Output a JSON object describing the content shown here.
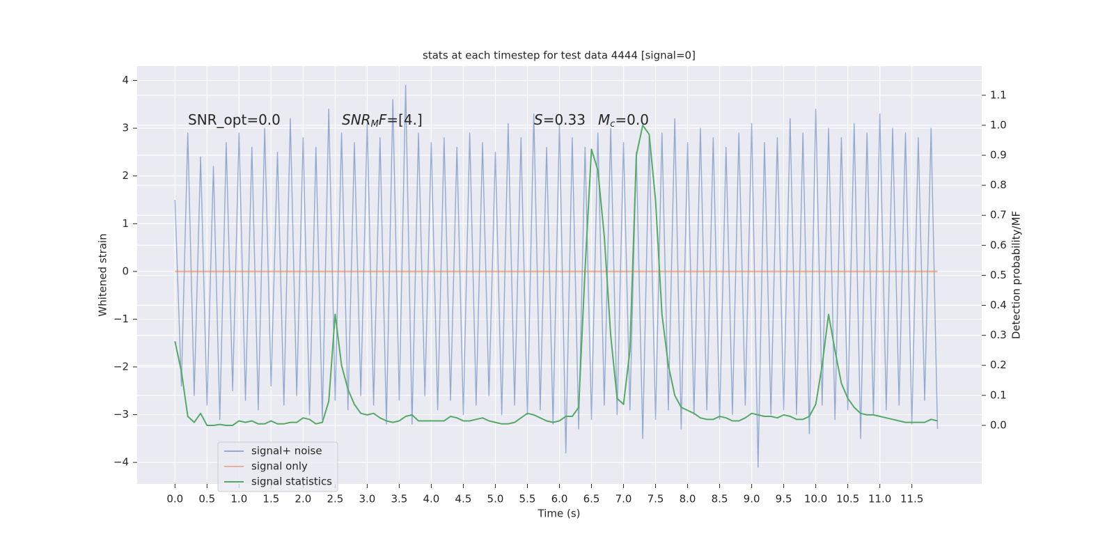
{
  "chart_data": {
    "type": "line",
    "title": "stats at each timestep for test data 4444 [signal=0]",
    "x_label": "Time (s)",
    "y_label": "Whitened strain",
    "y2_label": "Detection probability/MF",
    "annotations": [
      [
        "SNR_opt=0.0"
      ],
      [
        "SNR",
        "M",
        "F",
        "=[4.]"
      ],
      [
        "S",
        "=0.33"
      ],
      [
        "M",
        "c",
        "=0.0"
      ]
    ],
    "x": [
      0.0,
      0.1,
      0.2,
      0.3,
      0.4,
      0.5,
      0.6,
      0.7,
      0.8,
      0.9,
      1.0,
      1.1,
      1.2,
      1.3,
      1.4,
      1.5,
      1.6,
      1.7,
      1.8,
      1.9,
      2.0,
      2.1,
      2.2,
      2.3,
      2.4,
      2.5,
      2.6,
      2.7,
      2.8,
      2.9,
      3.0,
      3.1,
      3.2,
      3.3,
      3.4,
      3.5,
      3.6,
      3.7,
      3.8,
      3.9,
      4.0,
      4.1,
      4.2,
      4.3,
      4.4,
      4.5,
      4.6,
      4.7,
      4.8,
      4.9,
      5.0,
      5.1,
      5.2,
      5.3,
      5.4,
      5.5,
      5.6,
      5.7,
      5.8,
      5.9,
      6.0,
      6.1,
      6.2,
      6.3,
      6.4,
      6.5,
      6.6,
      6.7,
      6.8,
      6.9,
      7.0,
      7.1,
      7.2,
      7.3,
      7.4,
      7.5,
      7.6,
      7.7,
      7.8,
      7.9,
      8.0,
      8.1,
      8.2,
      8.3,
      8.4,
      8.5,
      8.6,
      8.7,
      8.8,
      8.9,
      9.0,
      9.1,
      9.2,
      9.3,
      9.4,
      9.5,
      9.6,
      9.7,
      9.8,
      9.9,
      10.0,
      10.1,
      10.2,
      10.3,
      10.4,
      10.5,
      10.6,
      10.7,
      10.8,
      10.9,
      11.0,
      11.1,
      11.2,
      11.3,
      11.4,
      11.5,
      11.6,
      11.7,
      11.8,
      11.9
    ],
    "series": [
      {
        "name": "signal+ noise",
        "color": "#4c72b0",
        "axis": "y",
        "values": [
          1.5,
          -2.4,
          2.9,
          -2.6,
          2.4,
          -2.8,
          2.2,
          -3.1,
          2.7,
          -2.5,
          2.9,
          -2.7,
          2.6,
          -2.9,
          3.0,
          -2.4,
          2.5,
          -2.8,
          3.2,
          -2.6,
          2.8,
          -3.0,
          2.6,
          -3.1,
          3.4,
          -2.7,
          2.9,
          -2.9,
          2.7,
          -2.6,
          3.1,
          -2.8,
          2.8,
          -3.2,
          3.6,
          -2.7,
          3.9,
          -3.2,
          2.9,
          -2.6,
          2.7,
          -2.9,
          2.8,
          -2.7,
          2.6,
          -3.0,
          2.9,
          -2.8,
          2.7,
          -2.6,
          2.5,
          -3.0,
          3.1,
          -2.8,
          2.8,
          -3.0,
          3.3,
          -2.9,
          2.6,
          -3.2,
          3.1,
          -3.8,
          2.8,
          -3.3,
          2.6,
          -3.1,
          2.9,
          -2.8,
          3.0,
          -3.0,
          2.7,
          -2.9,
          2.5,
          -3.5,
          2.8,
          -3.1,
          2.9,
          -2.9,
          3.2,
          -3.3,
          2.7,
          -3.0,
          3.0,
          -2.9,
          2.8,
          -3.1,
          2.6,
          -3.0,
          2.9,
          -2.8,
          3.1,
          -4.1,
          2.7,
          -3.0,
          2.8,
          -2.9,
          3.2,
          -3.0,
          2.9,
          -3.4,
          3.4,
          -2.8,
          3.0,
          -3.1,
          2.8,
          -2.9,
          3.1,
          -3.5,
          2.9,
          -3.0,
          3.3,
          -2.9,
          3.0,
          -2.8,
          2.9,
          -3.2,
          2.8,
          -2.7,
          3.0,
          -3.3
        ]
      },
      {
        "name": "signal only",
        "color": "#dd8452",
        "axis": "y",
        "values": [
          0,
          0,
          0,
          0,
          0,
          0,
          0,
          0,
          0,
          0,
          0,
          0,
          0,
          0,
          0,
          0,
          0,
          0,
          0,
          0,
          0,
          0,
          0,
          0,
          0,
          0,
          0,
          0,
          0,
          0,
          0,
          0,
          0,
          0,
          0,
          0,
          0,
          0,
          0,
          0,
          0,
          0,
          0,
          0,
          0,
          0,
          0,
          0,
          0,
          0,
          0,
          0,
          0,
          0,
          0,
          0,
          0,
          0,
          0,
          0,
          0,
          0,
          0,
          0,
          0,
          0,
          0,
          0,
          0,
          0,
          0,
          0,
          0,
          0,
          0,
          0,
          0,
          0,
          0,
          0,
          0,
          0,
          0,
          0,
          0,
          0,
          0,
          0,
          0,
          0,
          0,
          0,
          0,
          0,
          0,
          0,
          0,
          0,
          0,
          0,
          0,
          0,
          0,
          0,
          0,
          0,
          0,
          0,
          0,
          0,
          0,
          0,
          0,
          0,
          0,
          0,
          0,
          0,
          0,
          0
        ]
      },
      {
        "name": "signal statistics",
        "color": "#55a868",
        "axis": "y2",
        "values": [
          0.28,
          0.18,
          0.03,
          0.01,
          0.04,
          0.0,
          0.0,
          0.003,
          0.0,
          0.0,
          0.015,
          0.01,
          0.015,
          0.005,
          0.005,
          0.015,
          0.005,
          0.005,
          0.01,
          0.01,
          0.025,
          0.02,
          0.005,
          0.01,
          0.08,
          0.37,
          0.2,
          0.12,
          0.07,
          0.04,
          0.035,
          0.04,
          0.025,
          0.015,
          0.01,
          0.015,
          0.03,
          0.035,
          0.015,
          0.015,
          0.015,
          0.015,
          0.015,
          0.03,
          0.025,
          0.015,
          0.015,
          0.02,
          0.025,
          0.015,
          0.01,
          0.005,
          0.005,
          0.01,
          0.025,
          0.04,
          0.035,
          0.025,
          0.015,
          0.01,
          0.015,
          0.03,
          0.03,
          0.06,
          0.52,
          0.92,
          0.85,
          0.63,
          0.3,
          0.09,
          0.07,
          0.25,
          0.9,
          1.0,
          0.97,
          0.75,
          0.37,
          0.2,
          0.1,
          0.06,
          0.05,
          0.04,
          0.025,
          0.02,
          0.02,
          0.03,
          0.025,
          0.015,
          0.015,
          0.025,
          0.04,
          0.035,
          0.03,
          0.03,
          0.025,
          0.035,
          0.03,
          0.02,
          0.02,
          0.03,
          0.07,
          0.2,
          0.37,
          0.25,
          0.14,
          0.09,
          0.06,
          0.04,
          0.035,
          0.035,
          0.03,
          0.025,
          0.02,
          0.015,
          0.01,
          0.01,
          0.01,
          0.01,
          0.02,
          0.015
        ]
      }
    ],
    "xlim": [
      -0.59,
      12.59
    ],
    "xticks": [
      {
        "value": 0,
        "label": "0.0"
      },
      0.5,
      {
        "value": 1,
        "label": "1.0"
      },
      1.5,
      {
        "value": 2,
        "label": "2.0"
      },
      2.5,
      {
        "value": 3,
        "label": "3.0"
      },
      3.5,
      {
        "value": 4,
        "label": "4.0"
      },
      4.5,
      {
        "value": 5,
        "label": "5.0"
      },
      5.5,
      {
        "value": 6,
        "label": "6.0"
      },
      6.5,
      {
        "value": 7,
        "label": "7.0"
      },
      7.5,
      {
        "value": 8,
        "label": "8.0"
      },
      8.5,
      {
        "value": 9,
        "label": "9.0"
      },
      9.5,
      {
        "value": 10,
        "label": "10.0"
      },
      10.5,
      {
        "value": 11,
        "label": "11.0"
      },
      11.5
    ],
    "ylim": [
      -4.45,
      4.3
    ],
    "yticks": [
      {
        "value": -4,
        "label": "−4"
      },
      {
        "value": -3,
        "label": "−3"
      },
      {
        "value": -2,
        "label": "−2"
      },
      {
        "value": -1,
        "label": "−1"
      },
      0,
      1,
      2,
      3,
      4
    ],
    "y2lim": [
      -0.195,
      1.197
    ],
    "y2ticks": [
      {
        "value": 0,
        "label": "0.0"
      },
      0.1,
      0.2,
      0.3,
      0.4,
      0.5,
      0.6,
      0.7,
      0.8,
      0.9,
      {
        "value": 1,
        "label": "1.0"
      },
      1.1
    ],
    "grid": true,
    "legend": "lower left"
  }
}
